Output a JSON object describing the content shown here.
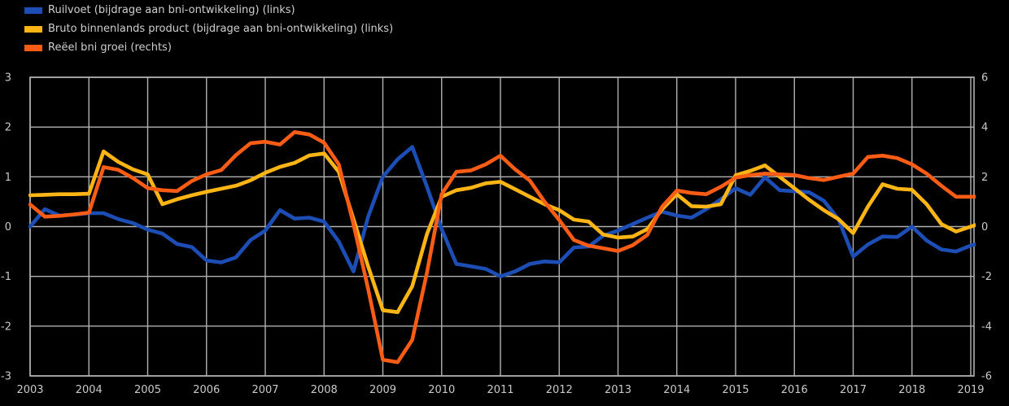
{
  "chart_data": {
    "type": "line",
    "title": "",
    "grid": true,
    "legend_position": "top-left",
    "x_axis": {
      "tick_values": [
        2003,
        2004,
        2005,
        2006,
        2007,
        2008,
        2009,
        2010,
        2011,
        2012,
        2013,
        2014,
        2015,
        2016,
        2017,
        2018,
        2019
      ],
      "tick_labels": [
        "2003",
        "2004",
        "2005",
        "2006",
        "2007",
        "2008",
        "2009",
        "2010",
        "2011",
        "2012",
        "2013",
        "2014",
        "2015",
        "2016",
        "2017",
        "2018",
        "2019"
      ]
    },
    "left_axis": {
      "min": -3,
      "max": 3,
      "tick_values": [
        3,
        2,
        1,
        0,
        -1,
        -2,
        -3
      ],
      "tick_labels": [
        "3",
        "2",
        "1",
        "0",
        "-1",
        "-2",
        "-3"
      ]
    },
    "right_axis": {
      "min": -6,
      "max": 6,
      "tick_values": [
        6,
        4,
        2,
        0,
        -2,
        -4,
        -6
      ],
      "tick_labels": [
        "6",
        "4",
        "2",
        "0",
        "-2",
        "-4",
        "-6"
      ]
    },
    "x": [
      2003,
      2003.25,
      2003.5,
      2003.75,
      2004,
      2004.25,
      2004.5,
      2004.75,
      2005,
      2005.25,
      2005.5,
      2005.75,
      2006,
      2006.25,
      2006.5,
      2006.75,
      2007,
      2007.25,
      2007.5,
      2007.75,
      2008,
      2008.25,
      2008.5,
      2008.75,
      2009,
      2009.25,
      2009.5,
      2009.75,
      2010,
      2010.25,
      2010.5,
      2010.75,
      2011,
      2011.25,
      2011.5,
      2011.75,
      2012,
      2012.25,
      2012.5,
      2012.75,
      2013,
      2013.25,
      2013.5,
      2013.75,
      2014,
      2014.25,
      2014.5,
      2014.75,
      2015,
      2015.25,
      2015.5,
      2015.75,
      2016,
      2016.25,
      2016.5,
      2016.75,
      2017,
      2017.25,
      2017.5,
      2017.75,
      2018,
      2018.25,
      2018.5,
      2018.75,
      2019,
      2019.08
    ],
    "series": [
      {
        "name": "Ruilvoet (bijdrage aan bni-ontwikkeling) (links)",
        "axis": "left",
        "color": "#1d4eb5",
        "values": [
          0.0,
          0.35,
          0.22,
          0.24,
          0.27,
          0.27,
          0.15,
          0.07,
          -0.06,
          -0.14,
          -0.35,
          -0.41,
          -0.68,
          -0.72,
          -0.62,
          -0.27,
          -0.08,
          0.33,
          0.16,
          0.18,
          0.1,
          -0.3,
          -0.9,
          0.2,
          1.0,
          1.35,
          1.6,
          0.8,
          -0.05,
          -0.75,
          -0.8,
          -0.85,
          -1.0,
          -0.9,
          -0.75,
          -0.7,
          -0.72,
          -0.42,
          -0.4,
          -0.18,
          -0.08,
          0.05,
          0.18,
          0.3,
          0.22,
          0.18,
          0.35,
          0.55,
          0.77,
          0.64,
          0.99,
          0.73,
          0.71,
          0.69,
          0.52,
          0.15,
          -0.6,
          -0.36,
          -0.2,
          -0.21,
          0.0,
          -0.28,
          -0.46,
          -0.5,
          -0.38,
          -0.36
        ]
      },
      {
        "name": "Bruto binnenlands product (bijdrage aan bni-ontwikkeling) (links)",
        "axis": "left",
        "color": "#fcb515",
        "values": [
          0.63,
          0.64,
          0.65,
          0.65,
          0.66,
          1.51,
          1.3,
          1.15,
          1.05,
          0.45,
          0.55,
          0.63,
          0.7,
          0.76,
          0.82,
          0.93,
          1.08,
          1.2,
          1.28,
          1.43,
          1.47,
          1.1,
          0.15,
          -0.8,
          -1.68,
          -1.72,
          -1.2,
          -0.15,
          0.6,
          0.73,
          0.78,
          0.87,
          0.9,
          0.75,
          0.6,
          0.45,
          0.33,
          0.14,
          0.1,
          -0.16,
          -0.22,
          -0.2,
          -0.05,
          0.35,
          0.65,
          0.41,
          0.4,
          0.45,
          1.03,
          1.12,
          1.23,
          1.0,
          0.77,
          0.54,
          0.33,
          0.15,
          -0.13,
          0.4,
          0.85,
          0.76,
          0.74,
          0.45,
          0.05,
          -0.1,
          0.0,
          0.03
        ]
      },
      {
        "name": "Reëel bni groei (rechts)",
        "axis": "right",
        "color": "#f85c15",
        "values": [
          0.89,
          0.4,
          0.43,
          0.49,
          0.56,
          2.39,
          2.28,
          1.95,
          1.55,
          1.46,
          1.43,
          1.83,
          2.1,
          2.27,
          2.87,
          3.35,
          3.41,
          3.3,
          3.8,
          3.7,
          3.37,
          2.5,
          0.1,
          -2.5,
          -5.35,
          -5.45,
          -4.55,
          -1.85,
          1.3,
          2.2,
          2.26,
          2.5,
          2.85,
          2.3,
          1.85,
          1.0,
          0.26,
          -0.54,
          -0.77,
          -0.87,
          -0.98,
          -0.75,
          -0.33,
          0.8,
          1.45,
          1.35,
          1.3,
          1.6,
          1.97,
          2.07,
          2.13,
          2.1,
          2.07,
          1.95,
          1.87,
          2.0,
          2.13,
          2.8,
          2.85,
          2.75,
          2.5,
          2.13,
          1.64,
          1.2,
          1.2,
          1.2
        ]
      }
    ]
  },
  "colors": {
    "background": "#000000",
    "grid": "#b2b2b2",
    "text": "#c9c9c9"
  }
}
